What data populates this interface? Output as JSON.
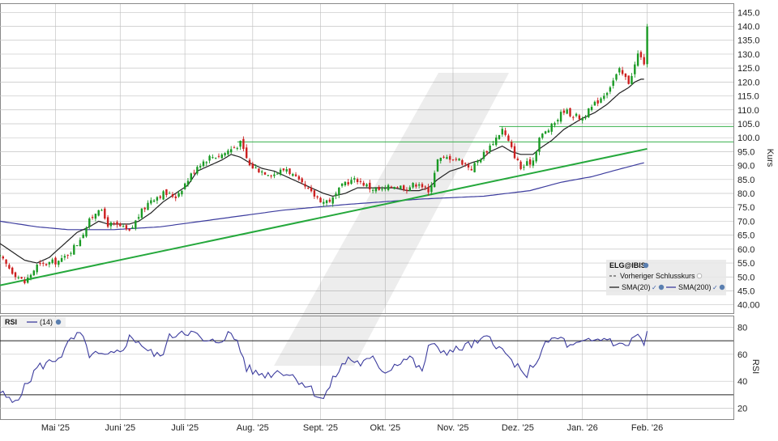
{
  "colors": {
    "up": "#1a9a24",
    "down": "#cc1f1f",
    "sma20": "#222222",
    "sma200": "#3c3c9e",
    "trendline": "#25a83c",
    "hline": "#37b04d",
    "rsi": "#3c3c9e",
    "grid": "#c4c4c4"
  },
  "chart_data": [
    {
      "type": "candlestick",
      "symbol": "ELG@IBIS",
      "ylabel": "Kurs",
      "ylim": [
        37,
        148
      ],
      "y_ticks": [
        "145.0",
        "140.0",
        "135.0",
        "130.0",
        "125.0",
        "120.0",
        "115.0",
        "110.0",
        "105.0",
        "100.0",
        "95.0",
        "90.0",
        "85.0",
        "80.0",
        "75.0",
        "70.0",
        "65.0",
        "60.0",
        "55.0",
        "50.0",
        "45.0",
        "40.00"
      ],
      "y_tick_values": [
        145,
        140,
        135,
        130,
        125,
        120,
        115,
        110,
        105,
        100,
        95,
        90,
        85,
        80,
        75,
        70,
        65,
        60,
        55,
        50,
        45,
        40
      ],
      "x_labels": [
        "Mai '25",
        "Juni '25",
        "Juli '25",
        "Aug. '25",
        "Sept. '25",
        "Okt. '25",
        "Nov. '25",
        "Dez. '25",
        "Jan. '26",
        "Feb. '26"
      ],
      "x_label_positions": [
        1,
        22,
        43,
        65,
        87,
        108,
        130,
        151,
        172,
        193
      ],
      "x_range": [
        -17,
        221
      ],
      "grid": true,
      "legend": {
        "position": "bottom-right",
        "entries": [
          {
            "label": "ELG@IBIS"
          },
          {
            "label": "Vorheriger Schlusskurs"
          },
          {
            "label": "SMA(20)"
          },
          {
            "label": "SMA(200)"
          }
        ]
      },
      "price_anchors": [
        [
          -17,
          57
        ],
        [
          -13,
          52
        ],
        [
          -9,
          48
        ],
        [
          -5,
          54
        ],
        [
          -1,
          55
        ],
        [
          3,
          56
        ],
        [
          8,
          62
        ],
        [
          12,
          70
        ],
        [
          15,
          75
        ],
        [
          18,
          69
        ],
        [
          22,
          68
        ],
        [
          25,
          66
        ],
        [
          28,
          72
        ],
        [
          32,
          78
        ],
        [
          36,
          80
        ],
        [
          40,
          79
        ],
        [
          44,
          85
        ],
        [
          47,
          90
        ],
        [
          51,
          93
        ],
        [
          55,
          94
        ],
        [
          58,
          96
        ],
        [
          61,
          98
        ],
        [
          64,
          90
        ],
        [
          68,
          88
        ],
        [
          72,
          87
        ],
        [
          76,
          89
        ],
        [
          80,
          84
        ],
        [
          84,
          80
        ],
        [
          88,
          77
        ],
        [
          91,
          78
        ],
        [
          95,
          84
        ],
        [
          99,
          85
        ],
        [
          103,
          82
        ],
        [
          107,
          81
        ],
        [
          111,
          83
        ],
        [
          115,
          82
        ],
        [
          119,
          84
        ],
        [
          122,
          80
        ],
        [
          125,
          92
        ],
        [
          129,
          93
        ],
        [
          132,
          92
        ],
        [
          136,
          89
        ],
        [
          139,
          93
        ],
        [
          142,
          97
        ],
        [
          146,
          103
        ],
        [
          149,
          96
        ],
        [
          152,
          89
        ],
        [
          156,
          92
        ],
        [
          158,
          100
        ],
        [
          162,
          104
        ],
        [
          166,
          110
        ],
        [
          169,
          108
        ],
        [
          172,
          107
        ],
        [
          176,
          112
        ],
        [
          180,
          117
        ],
        [
          184,
          124
        ],
        [
          187,
          120
        ],
        [
          189,
          126
        ],
        [
          190,
          130
        ],
        [
          192,
          127
        ],
        [
          193,
          139
        ]
      ],
      "sma20_anchors": [
        [
          -17,
          62
        ],
        [
          -13,
          59
        ],
        [
          -9,
          56
        ],
        [
          -5,
          55
        ],
        [
          -1,
          57
        ],
        [
          3,
          61
        ],
        [
          8,
          66
        ],
        [
          12,
          68
        ],
        [
          15,
          70
        ],
        [
          18,
          69
        ],
        [
          22,
          69
        ],
        [
          25,
          69
        ],
        [
          28,
          70
        ],
        [
          32,
          73
        ],
        [
          36,
          77
        ],
        [
          40,
          80
        ],
        [
          44,
          83
        ],
        [
          47,
          88
        ],
        [
          51,
          90
        ],
        [
          55,
          92
        ],
        [
          58,
          94
        ],
        [
          61,
          93
        ],
        [
          64,
          91
        ],
        [
          68,
          89
        ],
        [
          72,
          88
        ],
        [
          76,
          86
        ],
        [
          80,
          84
        ],
        [
          84,
          82
        ],
        [
          88,
          80
        ],
        [
          91,
          79
        ],
        [
          95,
          80
        ],
        [
          99,
          82
        ],
        [
          103,
          82
        ],
        [
          107,
          82
        ],
        [
          111,
          82
        ],
        [
          115,
          81
        ],
        [
          119,
          81
        ],
        [
          122,
          82
        ],
        [
          125,
          85
        ],
        [
          129,
          88
        ],
        [
          132,
          89
        ],
        [
          136,
          91
        ],
        [
          139,
          92
        ],
        [
          142,
          95
        ],
        [
          146,
          97
        ],
        [
          149,
          95
        ],
        [
          152,
          94
        ],
        [
          156,
          94
        ],
        [
          158,
          96
        ],
        [
          162,
          99
        ],
        [
          166,
          103
        ],
        [
          169,
          105
        ],
        [
          172,
          107
        ],
        [
          176,
          109
        ],
        [
          180,
          112
        ],
        [
          184,
          116
        ],
        [
          187,
          118
        ],
        [
          189,
          120
        ],
        [
          191,
          121
        ],
        [
          192,
          121
        ]
      ],
      "sma200_anchors": [
        [
          -17,
          70
        ],
        [
          -5,
          68
        ],
        [
          5,
          67
        ],
        [
          20,
          67
        ],
        [
          35,
          68
        ],
        [
          55,
          71
        ],
        [
          75,
          74
        ],
        [
          95,
          76
        ],
        [
          120,
          78
        ],
        [
          140,
          79
        ],
        [
          155,
          81
        ],
        [
          165,
          84
        ],
        [
          175,
          86
        ],
        [
          185,
          89
        ],
        [
          192,
          91
        ]
      ],
      "trendline": {
        "x": [
          -17,
          193
        ],
        "y": [
          47,
          96
        ]
      },
      "horizontal_lines": [
        {
          "y": 98.5,
          "x_start": 60
        },
        {
          "y": 104,
          "x_start": 145
        }
      ]
    },
    {
      "type": "line",
      "name": "RSI",
      "legend_label": "(14)",
      "ylabel": "RSI",
      "ylim": [
        12,
        88
      ],
      "y_ticks": [
        "80",
        "60",
        "40",
        "20"
      ],
      "y_tick_values": [
        80,
        60,
        40,
        20
      ],
      "reference_lines": [
        70,
        30
      ],
      "rsi_anchors": [
        [
          -17,
          32
        ],
        [
          -13,
          24
        ],
        [
          -9,
          35
        ],
        [
          -5,
          50
        ],
        [
          0,
          55
        ],
        [
          3,
          60
        ],
        [
          6,
          70
        ],
        [
          9,
          75
        ],
        [
          12,
          60
        ],
        [
          18,
          58
        ],
        [
          22,
          62
        ],
        [
          25,
          72
        ],
        [
          28,
          70
        ],
        [
          31,
          62
        ],
        [
          35,
          58
        ],
        [
          38,
          72
        ],
        [
          42,
          78
        ],
        [
          46,
          75
        ],
        [
          50,
          68
        ],
        [
          54,
          70
        ],
        [
          57,
          75
        ],
        [
          60,
          70
        ],
        [
          63,
          50
        ],
        [
          66,
          46
        ],
        [
          70,
          45
        ],
        [
          74,
          48
        ],
        [
          78,
          44
        ],
        [
          82,
          38
        ],
        [
          86,
          30
        ],
        [
          88,
          27
        ],
        [
          92,
          45
        ],
        [
          96,
          57
        ],
        [
          100,
          53
        ],
        [
          104,
          56
        ],
        [
          108,
          47
        ],
        [
          112,
          54
        ],
        [
          116,
          58
        ],
        [
          120,
          46
        ],
        [
          122,
          67
        ],
        [
          126,
          63
        ],
        [
          130,
          62
        ],
        [
          134,
          66
        ],
        [
          138,
          68
        ],
        [
          142,
          73
        ],
        [
          146,
          62
        ],
        [
          150,
          53
        ],
        [
          153,
          43
        ],
        [
          157,
          55
        ],
        [
          161,
          70
        ],
        [
          165,
          72
        ],
        [
          168,
          65
        ],
        [
          172,
          68
        ],
        [
          176,
          70
        ],
        [
          180,
          72
        ],
        [
          184,
          66
        ],
        [
          187,
          68
        ],
        [
          190,
          75
        ],
        [
          192,
          67
        ],
        [
          193,
          75
        ]
      ]
    }
  ]
}
